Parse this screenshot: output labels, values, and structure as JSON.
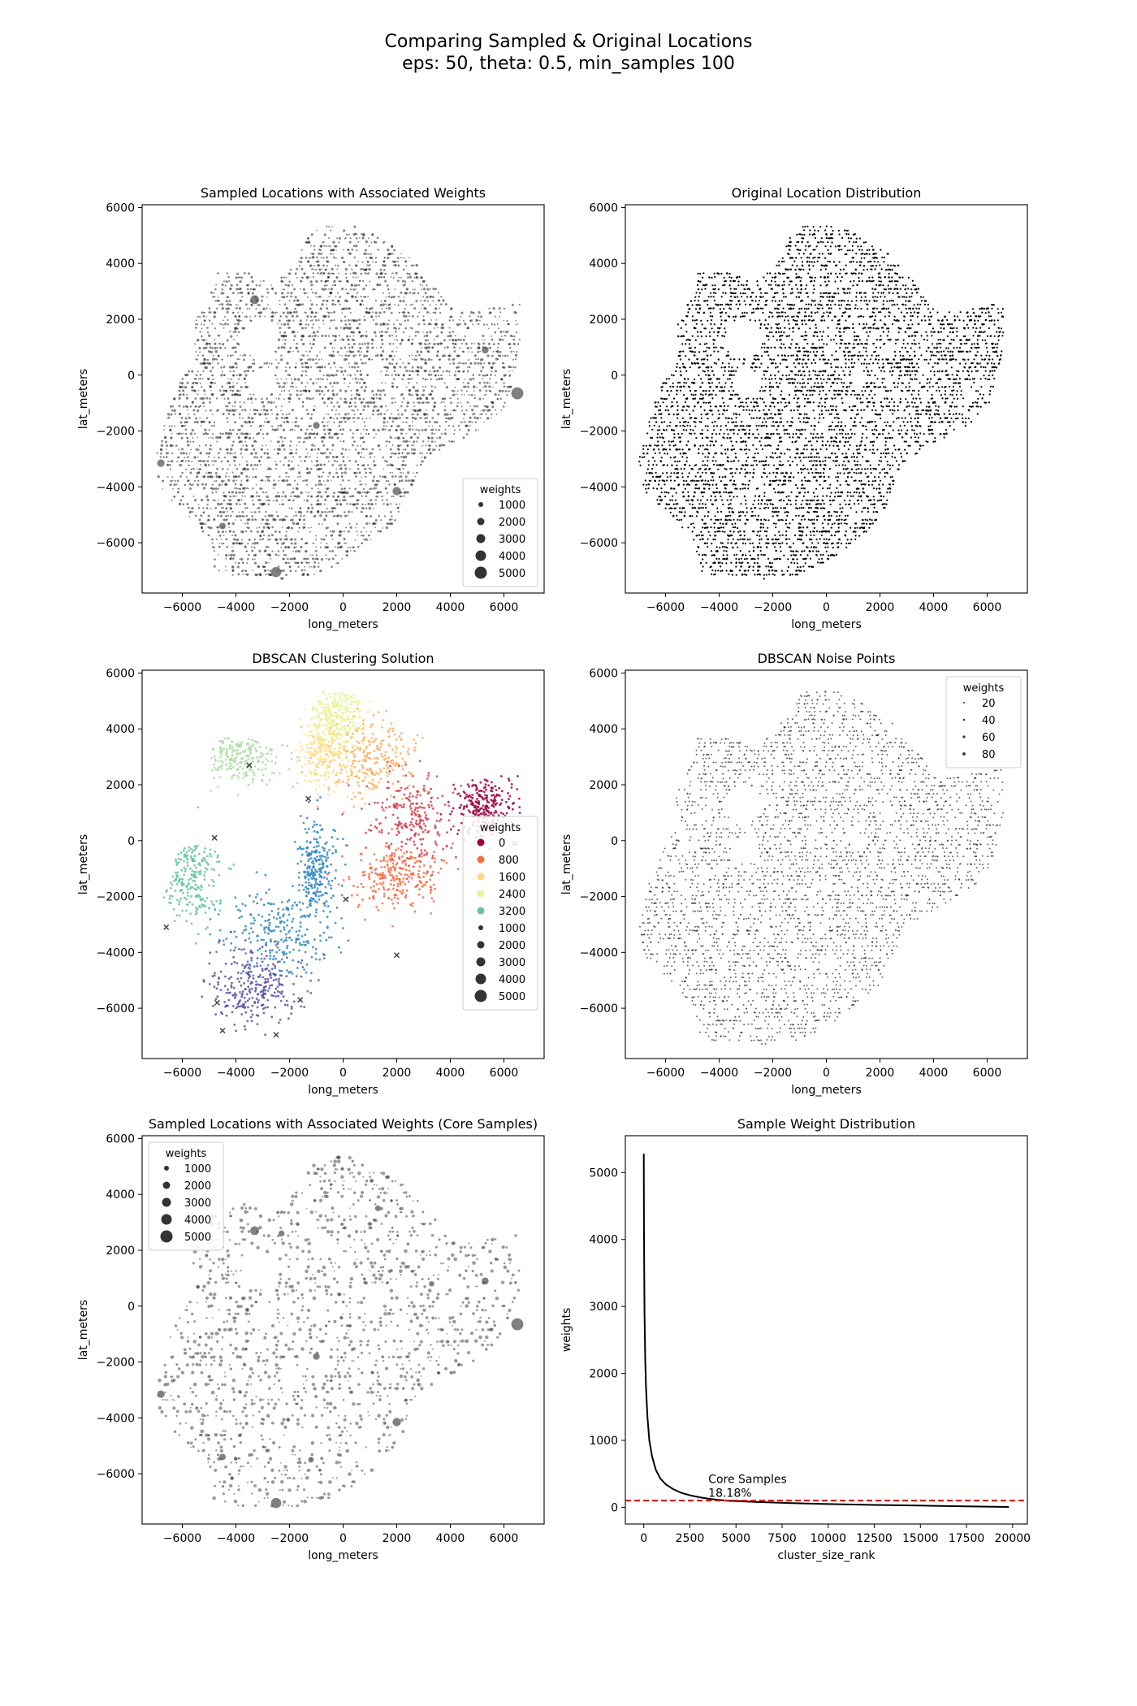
{
  "figure": {
    "suptitle_line1": "Comparing Sampled & Original Locations",
    "suptitle_line2": "eps: 50, theta: 0.5, min_samples 100"
  },
  "chart_data": [
    {
      "id": "p1",
      "type": "scatter",
      "title": "Sampled Locations with Associated Weights",
      "xlabel": "long_meters",
      "ylabel": "lat_meters",
      "xlim": [
        -7500,
        7500
      ],
      "ylim": [
        -7800,
        6100
      ],
      "xticks": [
        -6000,
        -4000,
        -2000,
        0,
        2000,
        4000,
        6000
      ],
      "yticks": [
        -6000,
        -4000,
        -2000,
        0,
        2000,
        4000,
        6000
      ],
      "style": "weighted-grey",
      "legend": {
        "title": "weights",
        "position": "lower right",
        "items": [
          {
            "label": "1000",
            "kind": "size",
            "r": 3.0,
            "color": "#333333"
          },
          {
            "label": "2000",
            "kind": "size",
            "r": 4.5,
            "color": "#333333"
          },
          {
            "label": "3000",
            "kind": "size",
            "r": 5.5,
            "color": "#333333"
          },
          {
            "label": "4000",
            "kind": "size",
            "r": 6.5,
            "color": "#333333"
          },
          {
            "label": "5000",
            "kind": "size",
            "r": 7.5,
            "color": "#333333"
          }
        ]
      },
      "highlights": [
        {
          "x": 6500,
          "y": -650,
          "w": 3800
        },
        {
          "x": -2500,
          "y": -7050,
          "w": 3000
        },
        {
          "x": 2000,
          "y": -4150,
          "w": 2200
        },
        {
          "x": -3300,
          "y": 2700,
          "w": 2400
        },
        {
          "x": -6800,
          "y": -3150,
          "w": 1800
        },
        {
          "x": 5300,
          "y": 900,
          "w": 1600
        },
        {
          "x": -1000,
          "y": -1800,
          "w": 1500
        },
        {
          "x": -4500,
          "y": -5400,
          "w": 1400
        }
      ]
    },
    {
      "id": "p2",
      "type": "scatter",
      "title": "Original Location Distribution",
      "xlabel": "long_meters",
      "ylabel": "lat_meters",
      "xlim": [
        -7500,
        7500
      ],
      "ylim": [
        -7800,
        6100
      ],
      "xticks": [
        -6000,
        -4000,
        -2000,
        0,
        2000,
        4000,
        6000
      ],
      "yticks": [
        -6000,
        -4000,
        -2000,
        0,
        2000,
        4000,
        6000
      ],
      "style": "dense-black"
    },
    {
      "id": "p3",
      "type": "scatter",
      "title": "DBSCAN Clustering Solution",
      "xlabel": "long_meters",
      "ylabel": "lat_meters",
      "xlim": [
        -7500,
        7500
      ],
      "ylim": [
        -7800,
        6100
      ],
      "xticks": [
        -6000,
        -4000,
        -2000,
        0,
        2000,
        4000,
        6000
      ],
      "yticks": [
        -6000,
        -4000,
        -2000,
        0,
        2000,
        4000,
        6000
      ],
      "style": "clusters",
      "legend": {
        "title": "weights",
        "position": "center right",
        "items": [
          {
            "label": "0",
            "kind": "color",
            "r": 4.5,
            "color": "#9e0142"
          },
          {
            "label": "800",
            "kind": "color",
            "r": 4.5,
            "color": "#f46d43"
          },
          {
            "label": "1600",
            "kind": "color",
            "r": 4.5,
            "color": "#fdd882"
          },
          {
            "label": "2400",
            "kind": "color",
            "r": 4.5,
            "color": "#e6f598"
          },
          {
            "label": "3200",
            "kind": "color",
            "r": 4.5,
            "color": "#66c2a5"
          },
          {
            "label": "1000",
            "kind": "size",
            "r": 3.0,
            "color": "#333333"
          },
          {
            "label": "2000",
            "kind": "size",
            "r": 4.5,
            "color": "#333333"
          },
          {
            "label": "3000",
            "kind": "size",
            "r": 5.5,
            "color": "#333333"
          },
          {
            "label": "4000",
            "kind": "size",
            "r": 6.5,
            "color": "#333333"
          },
          {
            "label": "5000",
            "kind": "size",
            "r": 7.5,
            "color": "#333333"
          }
        ]
      },
      "clusters": [
        {
          "cx": 5300,
          "cy": 1200,
          "sx": 900,
          "sy": 900,
          "color": "#9e0142"
        },
        {
          "cx": 2500,
          "cy": 800,
          "sx": 1200,
          "sy": 1400,
          "color": "#d53e4f"
        },
        {
          "cx": 2000,
          "cy": -1200,
          "sx": 1500,
          "sy": 1000,
          "color": "#f46d43"
        },
        {
          "cx": 1000,
          "cy": 3000,
          "sx": 1500,
          "sy": 1300,
          "color": "#fdae61"
        },
        {
          "cx": -600,
          "cy": 3200,
          "sx": 900,
          "sy": 1100,
          "color": "#fee08b"
        },
        {
          "cx": -200,
          "cy": 4500,
          "sx": 900,
          "sy": 800,
          "color": "#e6f598"
        },
        {
          "cx": -3800,
          "cy": 3000,
          "sx": 1200,
          "sy": 900,
          "color": "#abdda4"
        },
        {
          "cx": -5800,
          "cy": -1300,
          "sx": 1000,
          "sy": 1300,
          "color": "#66c2a5"
        },
        {
          "cx": -1000,
          "cy": -1000,
          "sx": 600,
          "sy": 1500,
          "color": "#3288bd"
        },
        {
          "cx": -2500,
          "cy": -3500,
          "sx": 1600,
          "sy": 1300,
          "color": "#3288bd"
        },
        {
          "cx": -3300,
          "cy": -5300,
          "sx": 1400,
          "sy": 1200,
          "color": "#5e4fa2"
        }
      ],
      "noise_marks": [
        {
          "x": 6400,
          "y": -100
        },
        {
          "x": 6300,
          "y": -700
        },
        {
          "x": 2000,
          "y": -4100
        },
        {
          "x": -6600,
          "y": -3100
        },
        {
          "x": -4700,
          "y": -5800
        },
        {
          "x": -2500,
          "y": -6950
        },
        {
          "x": -4800,
          "y": 100
        },
        {
          "x": -1600,
          "y": -5700
        },
        {
          "x": -3500,
          "y": 2700
        },
        {
          "x": 100,
          "y": -2100
        },
        {
          "x": -4500,
          "y": -6800
        },
        {
          "x": -1300,
          "y": 1500
        }
      ]
    },
    {
      "id": "p4",
      "type": "scatter",
      "title": "DBSCAN Noise Points",
      "xlabel": "long_meters",
      "ylabel": "lat_meters",
      "xlim": [
        -7500,
        7500
      ],
      "ylim": [
        -7800,
        6100
      ],
      "xticks": [
        -6000,
        -4000,
        -2000,
        0,
        2000,
        4000,
        6000
      ],
      "yticks": [
        -6000,
        -4000,
        -2000,
        0,
        2000,
        4000,
        6000
      ],
      "style": "noise-grey",
      "legend": {
        "title": "weights",
        "position": "upper right",
        "items": [
          {
            "label": "20",
            "kind": "size",
            "r": 1.0,
            "color": "#333333"
          },
          {
            "label": "40",
            "kind": "size",
            "r": 1.3,
            "color": "#333333"
          },
          {
            "label": "60",
            "kind": "size",
            "r": 1.6,
            "color": "#333333"
          },
          {
            "label": "80",
            "kind": "size",
            "r": 1.9,
            "color": "#333333"
          }
        ]
      }
    },
    {
      "id": "p5",
      "type": "scatter",
      "title": "Sampled Locations with Associated Weights (Core Samples)",
      "xlabel": "long_meters",
      "ylabel": "lat_meters",
      "xlim": [
        -7500,
        7500
      ],
      "ylim": [
        -7800,
        6100
      ],
      "xticks": [
        -6000,
        -4000,
        -2000,
        0,
        2000,
        4000,
        6000
      ],
      "yticks": [
        -6000,
        -4000,
        -2000,
        0,
        2000,
        4000,
        6000
      ],
      "style": "sparse-weighted",
      "legend": {
        "title": "weights",
        "position": "upper left",
        "items": [
          {
            "label": "1000",
            "kind": "size",
            "r": 3.0,
            "color": "#333333"
          },
          {
            "label": "2000",
            "kind": "size",
            "r": 4.5,
            "color": "#333333"
          },
          {
            "label": "3000",
            "kind": "size",
            "r": 5.5,
            "color": "#333333"
          },
          {
            "label": "4000",
            "kind": "size",
            "r": 6.5,
            "color": "#333333"
          },
          {
            "label": "5000",
            "kind": "size",
            "r": 7.5,
            "color": "#333333"
          }
        ]
      },
      "highlights": [
        {
          "x": 6500,
          "y": -650,
          "w": 3800
        },
        {
          "x": -2500,
          "y": -7050,
          "w": 3000
        },
        {
          "x": 2000,
          "y": -4150,
          "w": 2200
        },
        {
          "x": -3300,
          "y": 2700,
          "w": 2400
        },
        {
          "x": -6800,
          "y": -3150,
          "w": 1800
        },
        {
          "x": 5300,
          "y": 900,
          "w": 1600
        },
        {
          "x": -1000,
          "y": -1800,
          "w": 1500
        },
        {
          "x": -4500,
          "y": -5400,
          "w": 1400
        },
        {
          "x": 1300,
          "y": 3500,
          "w": 1100
        },
        {
          "x": -1200,
          "y": -5500,
          "w": 1000
        },
        {
          "x": -2300,
          "y": 2600,
          "w": 1200
        },
        {
          "x": 3300,
          "y": 800,
          "w": 900
        }
      ]
    },
    {
      "id": "p6",
      "type": "line",
      "title": "Sample Weight Distribution",
      "xlabel": "cluster_size_rank",
      "ylabel": "weights",
      "xlim": [
        -1000,
        20800
      ],
      "ylim": [
        -250,
        5550
      ],
      "xticks": [
        0,
        2500,
        5000,
        7500,
        10000,
        12500,
        15000,
        17500,
        20000
      ],
      "yticks": [
        0,
        1000,
        2000,
        3000,
        4000,
        5000
      ],
      "series": [
        {
          "x": [
            0,
            10,
            20,
            40,
            80,
            120,
            200,
            300,
            450,
            650,
            900,
            1200,
            1600,
            2000,
            2500,
            3000,
            3600,
            4500,
            6000,
            8000,
            10000,
            12500,
            15000,
            17500,
            19800
          ],
          "y": [
            5280,
            4300,
            3600,
            2900,
            2200,
            1800,
            1350,
            1000,
            760,
            560,
            430,
            340,
            270,
            220,
            180,
            150,
            125,
            100,
            80,
            62,
            48,
            35,
            25,
            15,
            5
          ],
          "color": "#000000"
        }
      ],
      "hline": {
        "y": 100,
        "color": "#e00000",
        "style": "dashed"
      },
      "annotation": {
        "line1": "Core Samples",
        "line2": "18.18%",
        "x": 3500,
        "y": 120
      }
    }
  ]
}
